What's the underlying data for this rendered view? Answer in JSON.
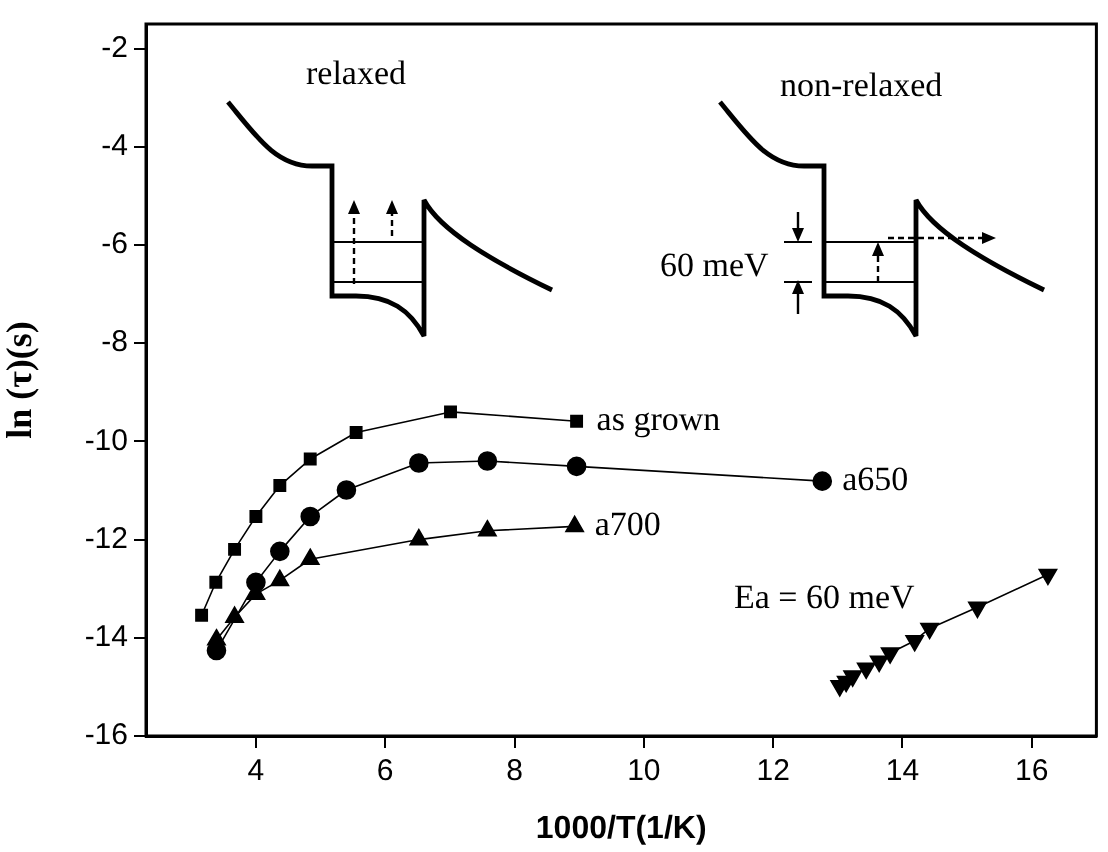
{
  "chart_data": {
    "type": "line",
    "xlabel": "1000/T(1/K)",
    "ylabel": "ln (τ)(s)",
    "xlim": [
      2.3,
      17
    ],
    "xticks": [
      4,
      6,
      8,
      10,
      12,
      14,
      16
    ],
    "ylim": [
      -16,
      -1.5
    ],
    "yticks": [
      -16,
      -14,
      -12,
      -10,
      -8,
      -6,
      -4,
      -2
    ],
    "grid": false,
    "legend": false,
    "line_style": "solid",
    "series": [
      {
        "name": "as grown",
        "color": "#000000",
        "marker": "square",
        "x": [
          3.16,
          3.38,
          3.67,
          4.0,
          4.37,
          4.84,
          5.55,
          7.01,
          8.96
        ],
        "values": [
          -13.54,
          -12.87,
          -12.2,
          -11.53,
          -10.9,
          -10.36,
          -9.82,
          -9.4,
          -9.59
        ]
      },
      {
        "name": "a650",
        "color": "#000000",
        "marker": "circle",
        "x": [
          3.39,
          4.0,
          4.37,
          4.84,
          5.4,
          6.52,
          7.58,
          8.96,
          12.76
        ],
        "values": [
          -14.26,
          -12.87,
          -12.24,
          -11.53,
          -10.99,
          -10.44,
          -10.4,
          -10.51,
          -10.81
        ]
      },
      {
        "name": "a700",
        "color": "#000000",
        "marker": "triangle",
        "x": [
          3.39,
          3.67,
          4.0,
          4.37,
          4.84,
          6.52,
          7.58,
          8.93
        ],
        "values": [
          -14.04,
          -13.58,
          -13.11,
          -12.83,
          -12.4,
          -12.0,
          -11.82,
          -11.73
        ]
      },
      {
        "color": "#000000",
        "marker": "triangle-down",
        "x": [
          13.03,
          13.13,
          13.23,
          13.44,
          13.64,
          13.81,
          14.19,
          14.42,
          15.16,
          16.25
        ],
        "values": [
          -14.98,
          -14.89,
          -14.78,
          -14.62,
          -14.48,
          -14.31,
          -14.06,
          -13.81,
          -13.38,
          -12.71
        ]
      }
    ],
    "annotations": [
      "relaxed",
      "non-relaxed",
      "60 meV",
      "Ea = 60 meV"
    ]
  }
}
